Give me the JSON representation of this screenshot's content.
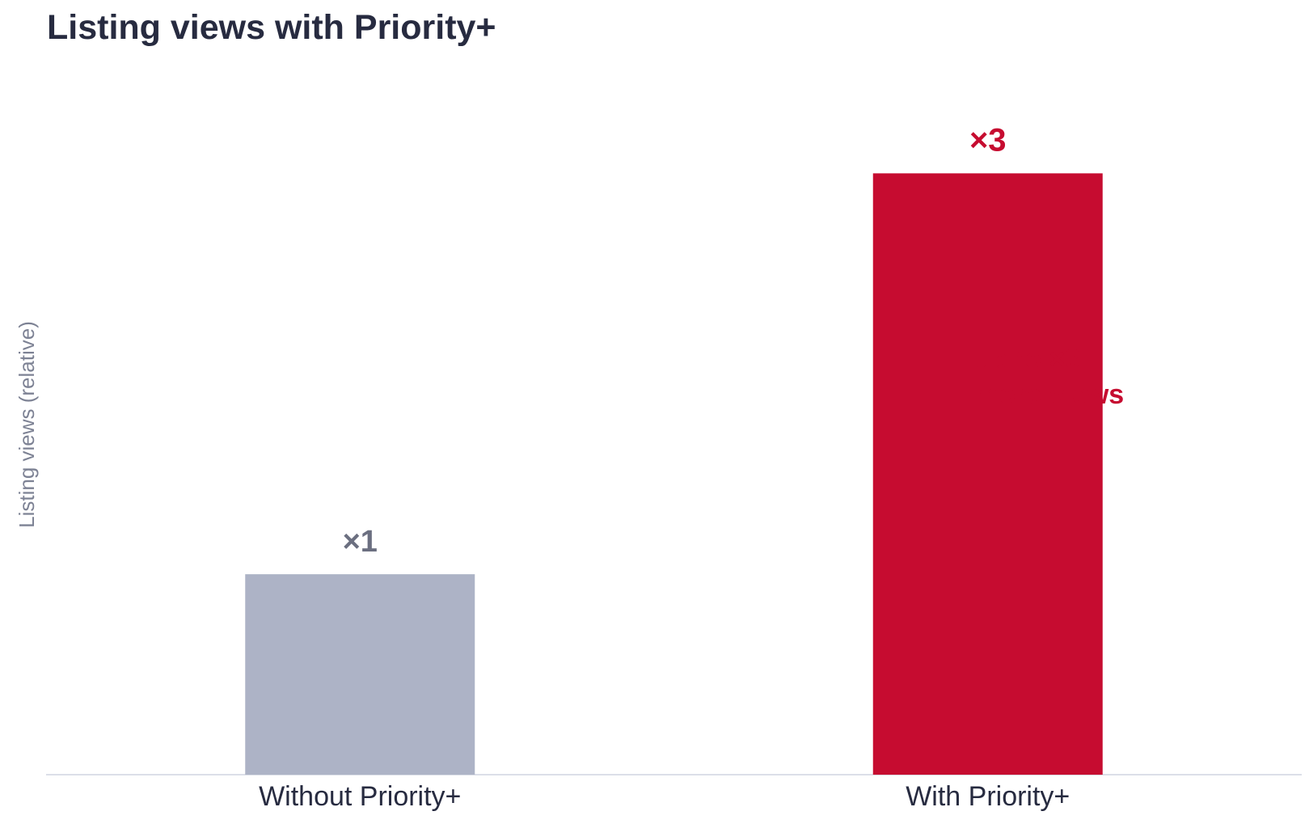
{
  "chart_data": {
    "type": "bar",
    "title": "Listing views with Priority+",
    "xlabel": "",
    "ylabel": "Listing views (relative)",
    "categories": [
      "Without Priority+",
      "With Priority+"
    ],
    "values": [
      1,
      3
    ],
    "data_labels": [
      "×1",
      "×3"
    ],
    "ylim": [
      0,
      3.3
    ],
    "grid": false,
    "legend": "none",
    "colors": {
      "bars": [
        "#adb3c6",
        "#c60c30"
      ],
      "data_labels": [
        "#6b6f80",
        "#c60c30"
      ],
      "title": "#272b40",
      "axis_label": "#7d8294",
      "tick_labels": "#272b40",
      "baseline": "#dcdfe8"
    },
    "annotation": "up to ×3 more views"
  }
}
